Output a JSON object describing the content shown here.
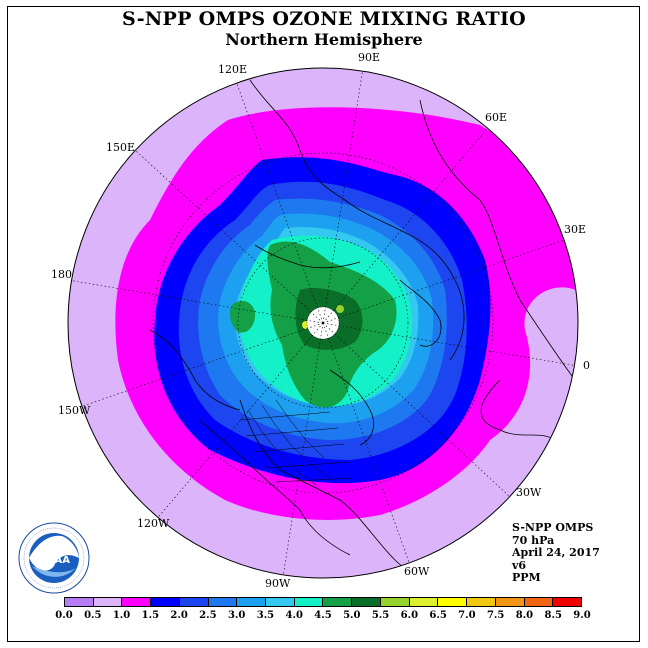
{
  "title": "S-NPP OMPS OZONE MIXING RATIO",
  "subtitle": "Northern Hemisphere",
  "longitude_labels": {
    "lon_90e": "90E",
    "lon_60e": "60E",
    "lon_30e": "30E",
    "lon_0": "0",
    "lon_30w": "30W",
    "lon_60w": "60W",
    "lon_90w": "90W",
    "lon_120w": "120W",
    "lon_150w": "150W",
    "lon_180": "180",
    "lon_150e": "150E",
    "lon_120e": "120E"
  },
  "info": {
    "instrument": "S-NPP OMPS",
    "level": "70 hPa",
    "date": "April 24, 2017",
    "version": "v6",
    "units": "PPM"
  },
  "colorbar": {
    "ticks": [
      "0.0",
      "0.5",
      "1.0",
      "1.5",
      "2.0",
      "2.5",
      "3.0",
      "3.5",
      "4.0",
      "4.5",
      "5.0",
      "5.5",
      "6.0",
      "6.5",
      "7.0",
      "7.5",
      "8.0",
      "8.5",
      "9.0"
    ],
    "colors": [
      "#b57cf5",
      "#dcb4f9",
      "#ff00ff",
      "#0000ff",
      "#1e46f0",
      "#1e78f0",
      "#1ea0f0",
      "#32c8f0",
      "#14f0c8",
      "#14a046",
      "#0a6e28",
      "#96d22d",
      "#dcf02d",
      "#ffff00",
      "#f0c814",
      "#f09614",
      "#f06414",
      "#f00000",
      "#8c5a3c"
    ]
  },
  "logo": {
    "text": "NOAA",
    "ring_text": "NATIONAL OCEANIC AND ATMOSPHERIC ADMINISTRATION · U.S. DEPARTMENT OF COMMERCE"
  },
  "colors": {
    "bg_level_0_5_1_0": "#dcb4f9",
    "level_1_0_1_5": "#ff00ff",
    "level_1_5_2_0": "#0000ff",
    "level_2_0_2_5": "#1e46f0",
    "level_2_5_3_0": "#1e78f0",
    "level_3_0_3_5": "#1ea0f0",
    "level_3_5_4_0": "#32c8f0",
    "level_4_0_4_5": "#14f0c8",
    "level_4_5_5_0": "#14a046",
    "level_5_0_5_5": "#0a6e28",
    "polar_no_data": "#ffffff"
  }
}
